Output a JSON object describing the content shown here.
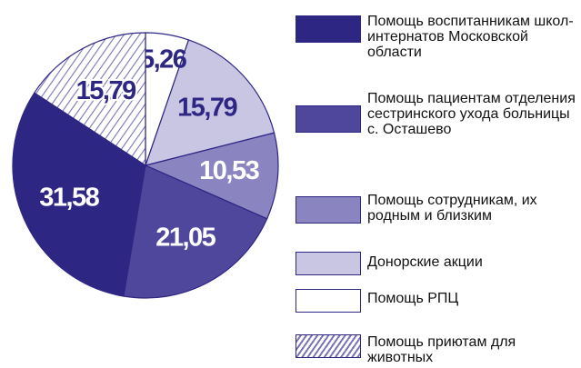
{
  "chart_data": {
    "type": "pie",
    "categories": [
      "Помощь воспитанникам школ-интернатов Московской области",
      "Помощь пациентам отделения сестринского ухода больницы с. Осташево",
      "Помощь сотрудникам, их родным и близким",
      "Донорские акции",
      "Помощь РПЦ",
      "Помощь приютам для животных"
    ],
    "values": [
      31.58,
      21.05,
      10.53,
      15.79,
      5.26,
      15.79
    ],
    "value_labels": [
      "31,58",
      "21,05",
      "10,53",
      "15,79",
      "5,26",
      "15,79"
    ],
    "colors": [
      "#2e2683",
      "#4f479b",
      "#8a84c0",
      "#c9c6e4",
      "#ffffff",
      "hatched"
    ]
  }
}
